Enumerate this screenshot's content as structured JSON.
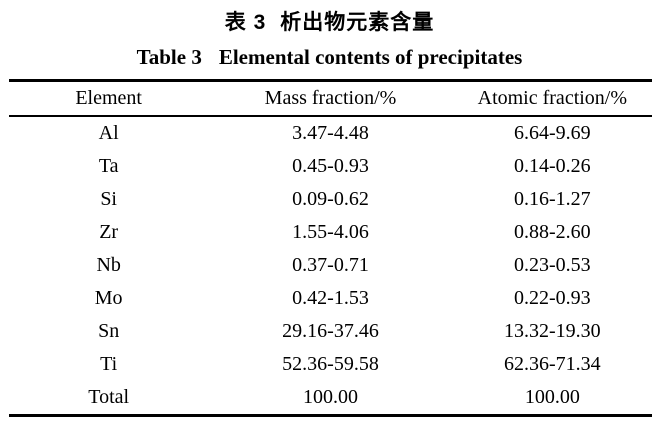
{
  "page": {
    "background_color": "#ffffff",
    "text_color": "#000000"
  },
  "title_cn": {
    "label": "表 3",
    "text": "析出物元素含量"
  },
  "title_en": {
    "label": "Table 3",
    "text": "Elemental contents of precipitates"
  },
  "table": {
    "headers": [
      "Element",
      "Mass fraction/%",
      "Atomic fraction/%"
    ],
    "rows": [
      {
        "element": "Al",
        "mass": "3.47-4.48",
        "atomic": "6.64-9.69"
      },
      {
        "element": "Ta",
        "mass": "0.45-0.93",
        "atomic": "0.14-0.26"
      },
      {
        "element": "Si",
        "mass": "0.09-0.62",
        "atomic": "0.16-1.27"
      },
      {
        "element": "Zr",
        "mass": "1.55-4.06",
        "atomic": "0.88-2.60"
      },
      {
        "element": "Nb",
        "mass": "0.37-0.71",
        "atomic": "0.23-0.53"
      },
      {
        "element": "Mo",
        "mass": "0.42-1.53",
        "atomic": "0.22-0.93"
      },
      {
        "element": "Sn",
        "mass": "29.16-37.46",
        "atomic": "13.32-19.30"
      },
      {
        "element": "Ti",
        "mass": "52.36-59.58",
        "atomic": "62.36-71.34"
      },
      {
        "element": "Total",
        "mass": "100.00",
        "atomic": "100.00"
      }
    ]
  }
}
